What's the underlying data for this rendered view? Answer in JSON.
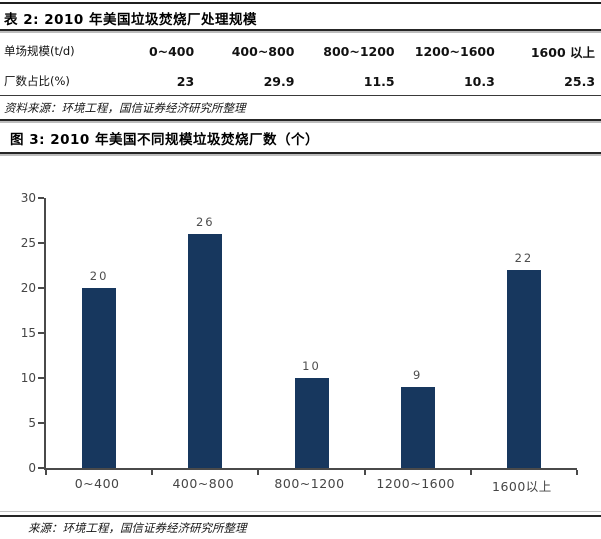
{
  "table_section": {
    "title": "表 2: 2010 年美国垃圾焚烧厂处理规模",
    "rows": [
      {
        "label": "单场规模(t/d)",
        "cells": [
          "0~400",
          "400~800",
          "800~1200",
          "1200~1600",
          "1600 以上"
        ]
      },
      {
        "label": "厂数占比(%)",
        "cells": [
          "23",
          "29.9",
          "11.5",
          "10.3",
          "25.3"
        ]
      }
    ],
    "source": "资料来源：环境工程，国信证券经济研究所整理"
  },
  "figure_section": {
    "title": "图 3: 2010 年美国不同规模垃圾焚烧厂数（个）",
    "source": "来源：环境工程，国信证券经济研究所整理"
  },
  "chart_data": {
    "type": "bar",
    "title": "2010 年美国不同规模垃圾焚烧厂数（个）",
    "categories": [
      "0~400",
      "400~800",
      "800~1200",
      "1200~1600",
      "1600以上"
    ],
    "values": [
      20,
      26,
      10,
      9,
      22
    ],
    "xlabel": "",
    "ylabel": "",
    "ylim": [
      0,
      30
    ],
    "yticks": [
      0,
      5,
      10,
      15,
      20,
      25,
      30
    ],
    "grid": false,
    "legend": "none",
    "bar_color": "#17375E",
    "axis_color": "#4a4a4a",
    "label_color": "#4d4d4d"
  }
}
